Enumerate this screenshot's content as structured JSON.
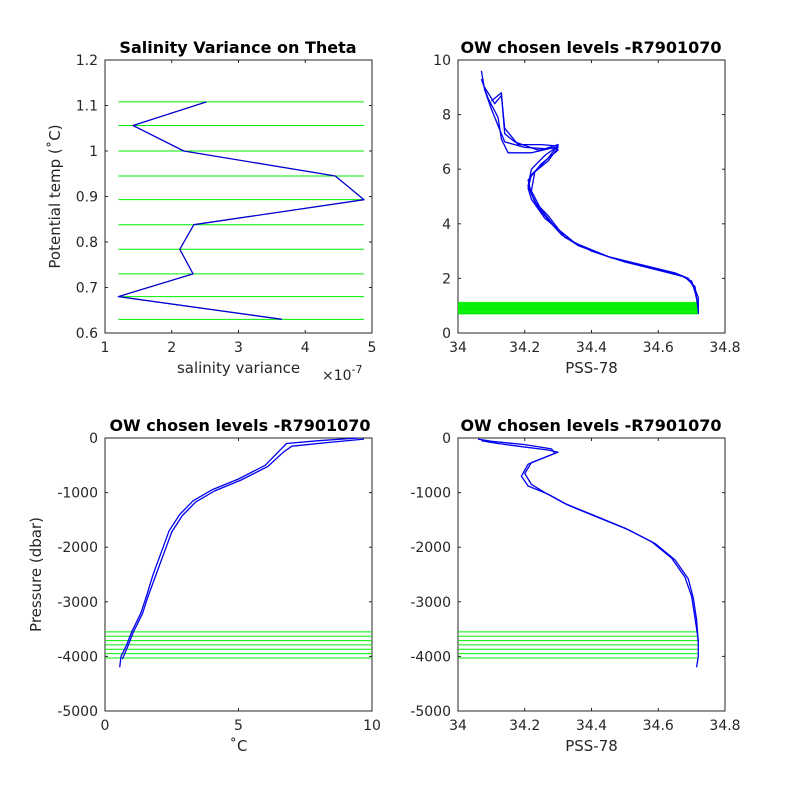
{
  "chart_data": [
    {
      "type": "line",
      "title": "Salinity Variance on Theta",
      "xlabel": "salinity variance",
      "ylabel": "Potential temp (˚C)",
      "x_exponent_label": "×10",
      "x_exponent_power": "-7",
      "xlim": [
        1,
        5
      ],
      "ylim": [
        0.6,
        1.2
      ],
      "xticks": [
        1,
        2,
        3,
        4,
        5
      ],
      "xtick_labels": [
        "1",
        "2",
        "3",
        "4",
        "5"
      ],
      "yticks": [
        0.6,
        0.7,
        0.8,
        0.9,
        1.0,
        1.1,
        1.2
      ],
      "ytick_labels": [
        "0.6",
        "0.7",
        "0.8",
        "0.9",
        "1",
        "1.1",
        "1.2"
      ],
      "series": [
        {
          "color": "#0000cc",
          "x": [
            2.52,
            1.42,
            2.18,
            4.45,
            4.88,
            2.33,
            2.12,
            2.32,
            1.2,
            3.65
          ],
          "y": [
            1.108,
            1.056,
            1.0,
            0.945,
            0.893,
            0.838,
            0.784,
            0.73,
            0.68,
            0.63
          ]
        }
      ],
      "reference_lines": {
        "color": "#00ee00",
        "orientation": "horizontal",
        "x_range": [
          1.2,
          4.88
        ],
        "values": [
          1.108,
          1.056,
          1.0,
          0.945,
          0.893,
          0.838,
          0.784,
          0.73,
          0.68,
          0.63
        ]
      }
    },
    {
      "type": "line",
      "title": "OW chosen levels -R7901070",
      "xlabel": "PSS-78",
      "ylabel": "",
      "xlim": [
        34,
        34.8
      ],
      "ylim": [
        0,
        10
      ],
      "xticks": [
        34,
        34.2,
        34.4,
        34.6,
        34.8
      ],
      "xtick_labels": [
        "34",
        "34.2",
        "34.4",
        "34.6",
        "34.8"
      ],
      "yticks": [
        0,
        2,
        4,
        6,
        8,
        10
      ],
      "ytick_labels": [
        "0",
        "2",
        "4",
        "6",
        "8",
        "10"
      ],
      "series": [
        {
          "color": "#0000ee",
          "x": [
            34.07,
            34.08,
            34.1,
            34.12,
            34.14,
            34.2,
            34.26,
            34.3,
            34.27,
            34.22,
            34.21,
            34.22,
            34.26,
            34.3,
            34.35,
            34.45,
            34.55,
            34.65,
            34.69,
            34.71,
            34.72,
            34.72
          ],
          "y": [
            9.6,
            8.9,
            8.2,
            7.6,
            7.0,
            6.8,
            6.75,
            6.9,
            6.4,
            5.8,
            5.3,
            4.9,
            4.2,
            3.8,
            3.3,
            2.8,
            2.5,
            2.2,
            2.0,
            1.6,
            1.3,
            0.7
          ]
        },
        {
          "color": "#0000ee",
          "x": [
            34.07,
            34.09,
            34.12,
            34.13,
            34.15,
            34.22,
            34.29,
            34.3,
            34.25,
            34.21,
            34.22,
            34.24,
            34.28,
            34.31,
            34.36,
            34.46,
            34.56,
            34.66,
            34.7,
            34.71,
            34.72
          ],
          "y": [
            9.3,
            8.6,
            7.9,
            7.1,
            6.6,
            6.6,
            6.8,
            6.7,
            6.2,
            5.6,
            5.1,
            4.6,
            4.0,
            3.6,
            3.2,
            2.75,
            2.45,
            2.15,
            1.9,
            1.5,
            1.0
          ]
        },
        {
          "color": "#0000ee",
          "x": [
            34.08,
            34.11,
            34.13,
            34.14,
            34.18,
            34.25,
            34.3,
            34.26,
            34.22,
            34.21,
            34.23,
            34.27,
            34.32,
            34.4,
            34.5,
            34.6,
            34.68,
            34.71,
            34.72
          ],
          "y": [
            9.0,
            8.4,
            8.7,
            7.5,
            6.9,
            6.9,
            6.85,
            6.5,
            6.0,
            5.4,
            4.8,
            4.3,
            3.5,
            3.0,
            2.6,
            2.3,
            2.05,
            1.7,
            0.8
          ]
        },
        {
          "color": "#0000ee",
          "x": [
            34.1,
            34.13,
            34.14,
            34.17,
            34.24,
            34.3,
            34.27,
            34.23,
            34.22,
            34.25,
            34.29,
            34.34
          ],
          "y": [
            8.5,
            8.8,
            7.3,
            7.0,
            6.7,
            6.8,
            6.3,
            5.9,
            5.2,
            4.5,
            3.9,
            3.4
          ]
        }
      ],
      "reference_lines": {
        "color": "#00ee00",
        "orientation": "horizontal",
        "x_range": [
          34.0,
          34.72
        ],
        "values": [
          0.7,
          0.73,
          0.76,
          0.79,
          0.82,
          0.85,
          0.88,
          0.91,
          0.94,
          0.97,
          1.0,
          1.03,
          1.06,
          1.09,
          1.12
        ]
      }
    },
    {
      "type": "line",
      "title": "OW chosen levels -R7901070",
      "xlabel": "˚C",
      "ylabel": "Pressure (dbar)",
      "xlim": [
        0,
        10
      ],
      "ylim": [
        -5000,
        0
      ],
      "xticks": [
        0,
        5,
        10
      ],
      "xtick_labels": [
        "0",
        "5",
        "10"
      ],
      "yticks": [
        -5000,
        -4000,
        -3000,
        -2000,
        -1000,
        0
      ],
      "ytick_labels": [
        "-5000",
        "-4000",
        "-3000",
        "-2000",
        "-1000",
        "0"
      ],
      "series": [
        {
          "color": "#0000ee",
          "x": [
            9.5,
            8.0,
            6.8,
            6.6,
            6.0,
            5.0,
            4.0,
            3.3,
            2.8,
            2.4,
            2.1,
            1.8,
            1.55,
            1.35,
            1.15,
            1.0,
            0.8,
            0.6,
            0.55
          ],
          "y": [
            0,
            -50,
            -100,
            -200,
            -500,
            -750,
            -950,
            -1150,
            -1400,
            -1700,
            -2100,
            -2500,
            -2900,
            -3200,
            -3400,
            -3550,
            -3800,
            -4000,
            -4200
          ]
        },
        {
          "color": "#0000ee",
          "x": [
            9.7,
            8.4,
            7.0,
            6.7,
            6.1,
            5.1,
            4.1,
            3.4,
            2.9,
            2.5,
            2.2,
            1.9,
            1.6,
            1.4,
            1.2,
            1.05,
            0.85,
            0.65
          ],
          "y": [
            -20,
            -80,
            -150,
            -250,
            -520,
            -770,
            -970,
            -1170,
            -1420,
            -1720,
            -2120,
            -2520,
            -2920,
            -3220,
            -3420,
            -3570,
            -3820,
            -4050
          ]
        }
      ],
      "reference_lines": {
        "color": "#00ee00",
        "orientation": "horizontal",
        "x_range": [
          0,
          10
        ],
        "values": [
          -3550,
          -3630,
          -3710,
          -3790,
          -3870,
          -3950,
          -4030
        ]
      }
    },
    {
      "type": "line",
      "title": "OW chosen levels -R7901070",
      "xlabel": "PSS-78",
      "ylabel": "",
      "xlim": [
        34,
        34.8
      ],
      "ylim": [
        -5000,
        0
      ],
      "xticks": [
        34,
        34.2,
        34.4,
        34.6,
        34.8
      ],
      "xtick_labels": [
        "34",
        "34.2",
        "34.4",
        "34.6",
        "34.8"
      ],
      "yticks": [
        -5000,
        -4000,
        -3000,
        -2000,
        -1000,
        0
      ],
      "ytick_labels": [
        "-5000",
        "-4000",
        "-3000",
        "-2000",
        "-1000",
        "0"
      ],
      "series": [
        {
          "color": "#0000ee",
          "x": [
            34.07,
            34.12,
            34.18,
            34.27,
            34.3,
            34.22,
            34.2,
            34.22,
            34.26,
            34.32,
            34.4,
            34.5,
            34.58,
            34.64,
            34.68,
            34.7,
            34.71,
            34.72,
            34.72,
            34.715
          ],
          "y": [
            -50,
            -100,
            -150,
            -220,
            -260,
            -450,
            -650,
            -850,
            -1000,
            -1200,
            -1400,
            -1650,
            -1900,
            -2200,
            -2550,
            -2900,
            -3300,
            -3700,
            -4000,
            -4200
          ]
        },
        {
          "color": "#0000ee",
          "x": [
            34.06,
            34.1,
            34.2,
            34.28,
            34.29,
            34.21,
            34.19,
            34.21,
            34.27,
            34.33,
            34.41,
            34.51,
            34.59,
            34.65,
            34.69,
            34.705,
            34.715,
            34.72
          ],
          "y": [
            -20,
            -60,
            -120,
            -200,
            -280,
            -480,
            -700,
            -880,
            -1030,
            -1230,
            -1430,
            -1680,
            -1930,
            -2230,
            -2580,
            -2930,
            -3330,
            -3750
          ]
        }
      ],
      "reference_lines": {
        "color": "#00ee00",
        "orientation": "horizontal",
        "x_range": [
          34.0,
          34.72
        ],
        "values": [
          -3550,
          -3630,
          -3710,
          -3790,
          -3870,
          -3950,
          -4030
        ]
      }
    }
  ]
}
